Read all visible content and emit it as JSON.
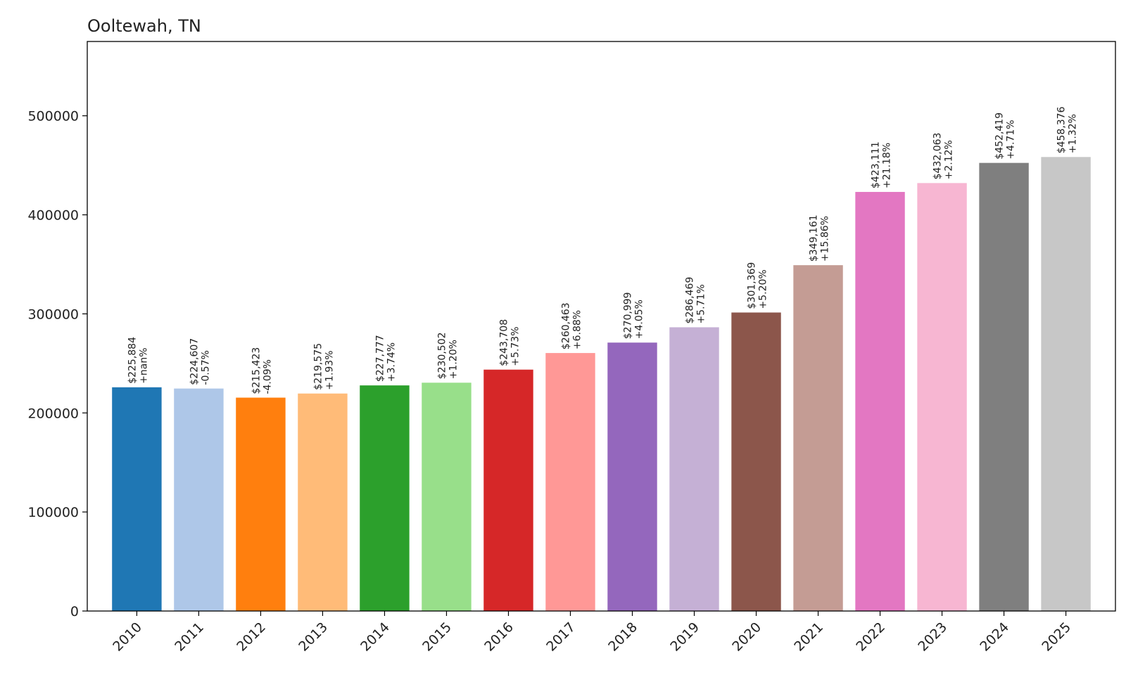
{
  "chart_data": {
    "type": "bar",
    "title": "Ooltewah, TN",
    "xlabel": "",
    "ylabel": "",
    "ylim": [
      0,
      575000
    ],
    "yticks": [
      0,
      100000,
      200000,
      300000,
      400000,
      500000
    ],
    "ytick_labels": [
      "0",
      "100000",
      "200000",
      "300000",
      "400000",
      "500000"
    ],
    "grid": false,
    "categories": [
      "2010",
      "2011",
      "2012",
      "2013",
      "2014",
      "2015",
      "2016",
      "2017",
      "2018",
      "2019",
      "2020",
      "2021",
      "2022",
      "2023",
      "2024",
      "2025"
    ],
    "values": [
      225884,
      224607,
      215423,
      219575,
      227777,
      230502,
      243708,
      260463,
      270999,
      286469,
      301369,
      349161,
      423111,
      432063,
      452419,
      458376
    ],
    "value_labels": [
      "$225,884",
      "$224,607",
      "$215,423",
      "$219,575",
      "$227,777",
      "$230,502",
      "$243,708",
      "$260,463",
      "$270,999",
      "$286,469",
      "$301,369",
      "$349,161",
      "$423,111",
      "$432,063",
      "$452,419",
      "$458,376"
    ],
    "change_labels": [
      "+nan%",
      "-0.57%",
      "-4.09%",
      "+1.93%",
      "+3.74%",
      "+1.20%",
      "+5.73%",
      "+6.88%",
      "+4.05%",
      "+5.71%",
      "+5.20%",
      "+15.86%",
      "+21.18%",
      "+2.12%",
      "+4.71%",
      "+1.32%"
    ],
    "colors": [
      "#1f77b4",
      "#aec7e8",
      "#ff7f0e",
      "#ffbb78",
      "#2ca02c",
      "#98df8a",
      "#d62728",
      "#ff9896",
      "#9467bd",
      "#c5b0d5",
      "#8c564b",
      "#c49c94",
      "#e377c2",
      "#f7b6d2",
      "#7f7f7f",
      "#c7c7c7"
    ]
  }
}
